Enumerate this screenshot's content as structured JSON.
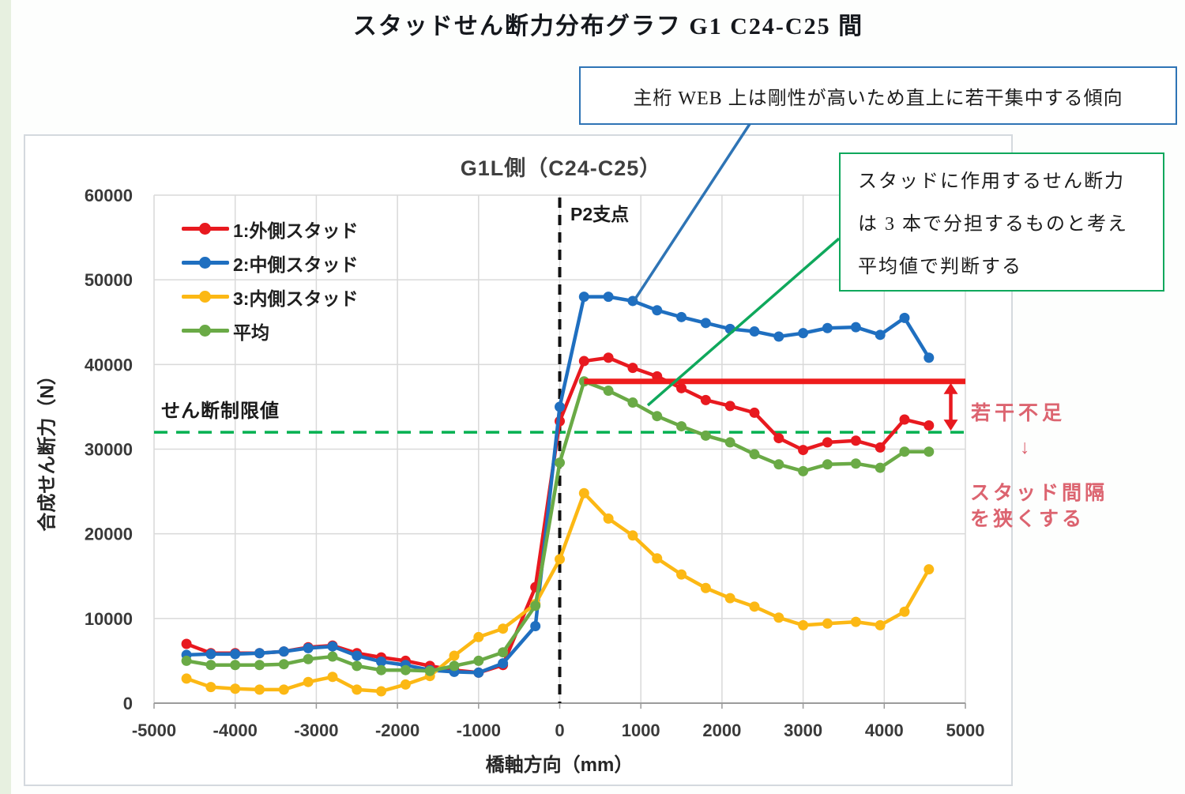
{
  "page": {
    "doc_title": "スタッドせん断力分布グラフ G1 C24-C25 間"
  },
  "chart_data": {
    "type": "line",
    "title": "G1L側（C24-C25）",
    "xlabel": "橋軸方向（mm）",
    "ylabel": "合成せん断力（N）",
    "xlim": [
      -5000,
      5000
    ],
    "ylim": [
      0,
      60000
    ],
    "x_ticks": [
      -5000,
      -4000,
      -3000,
      -2000,
      -1000,
      0,
      1000,
      2000,
      3000,
      4000,
      5000
    ],
    "y_ticks": [
      0,
      10000,
      20000,
      30000,
      40000,
      50000,
      60000
    ],
    "grid": true,
    "legend_position": "top-left",
    "x": [
      -4600,
      -4300,
      -4000,
      -3700,
      -3400,
      -3100,
      -2800,
      -2500,
      -2200,
      -1900,
      -1600,
      -1300,
      -1000,
      -700,
      -300,
      0,
      300,
      600,
      900,
      1200,
      1500,
      1800,
      2100,
      2400,
      2700,
      3000,
      3300,
      3650,
      3950,
      4250,
      4550
    ],
    "series": [
      {
        "name": "1:外側スタッド",
        "color": "#e8191f",
        "values": [
          7000,
          5900,
          5900,
          5900,
          6100,
          6600,
          6800,
          5900,
          5400,
          5000,
          4400,
          3900,
          3600,
          4500,
          13700,
          33300,
          40400,
          40800,
          39600,
          38600,
          37200,
          35800,
          35100,
          34300,
          31300,
          29900,
          30800,
          31000,
          30200,
          33500,
          32800
        ]
      },
      {
        "name": "2:中側スタッド",
        "color": "#1f6fc0",
        "values": [
          5700,
          5800,
          5800,
          5900,
          6100,
          6500,
          6700,
          5600,
          4900,
          4500,
          3900,
          3700,
          3600,
          4700,
          9100,
          35000,
          48000,
          48000,
          47500,
          46400,
          45600,
          44900,
          44200,
          43900,
          43300,
          43700,
          44300,
          44400,
          43500,
          45500,
          40800
        ]
      },
      {
        "name": "3:内側スタッド",
        "color": "#fcb814",
        "values": [
          2900,
          1900,
          1700,
          1600,
          1600,
          2500,
          3100,
          1600,
          1400,
          2200,
          3200,
          5600,
          7800,
          8800,
          11700,
          17000,
          24800,
          21800,
          19800,
          17100,
          15200,
          13600,
          12400,
          11400,
          10100,
          9200,
          9400,
          9600,
          9200,
          10800,
          15800
        ]
      },
      {
        "name": "平均",
        "color": "#6aaa46",
        "values": [
          5000,
          4500,
          4500,
          4500,
          4600,
          5200,
          5500,
          4400,
          3900,
          3900,
          3800,
          4400,
          5000,
          6000,
          11500,
          28400,
          38000,
          36900,
          35500,
          33900,
          32700,
          31600,
          30800,
          29400,
          28200,
          27400,
          28200,
          28300,
          27800,
          29700,
          29700
        ]
      }
    ],
    "reference_lines": {
      "shear_limit": {
        "label": "せん断制限値",
        "value": 32000,
        "color": "#00b050",
        "style": "dashed"
      },
      "red_target": {
        "value": 38000,
        "x_start": 300,
        "x_end": 5000,
        "color": "#ee1c1c"
      },
      "p2_support": {
        "label": "P2支点",
        "x": 0,
        "color": "#111111",
        "style": "dashed"
      }
    }
  },
  "annotations": {
    "p2_label": "P2支点",
    "shear_limit_label": "せん断制限値",
    "blue_box": {
      "text": "主桁 WEB 上は剛性が高いため直上に若干集中する傾向",
      "border_color": "#2e74b5"
    },
    "green_box": {
      "lines": [
        "スタッドに作用するせん断力",
        "は 3 本で分担するものと考え",
        "平均値で判断する"
      ],
      "border_color": "#0fa85c"
    },
    "red_note": {
      "line1": "若干不足",
      "arrow": "↓",
      "line2": "スタッド間隔",
      "line3": "を狭くする",
      "color": "#dc6470"
    }
  }
}
